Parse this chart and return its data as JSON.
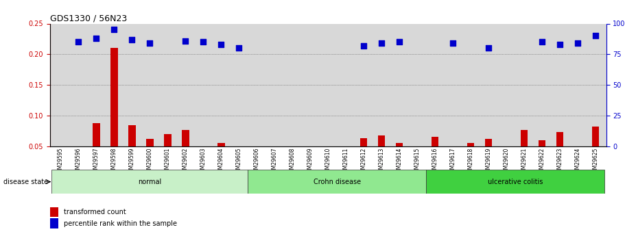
{
  "title": "GDS1330 / 56N23",
  "samples": [
    "GSM29595",
    "GSM29596",
    "GSM29597",
    "GSM29598",
    "GSM29599",
    "GSM29600",
    "GSM29601",
    "GSM29602",
    "GSM29603",
    "GSM29604",
    "GSM29605",
    "GSM29606",
    "GSM29607",
    "GSM29608",
    "GSM29609",
    "GSM29610",
    "GSM29611",
    "GSM29612",
    "GSM29613",
    "GSM29614",
    "GSM29615",
    "GSM29616",
    "GSM29617",
    "GSM29618",
    "GSM29619",
    "GSM29620",
    "GSM29621",
    "GSM29622",
    "GSM29623",
    "GSM29624",
    "GSM29625"
  ],
  "red_values": [
    0.05,
    0.05,
    0.088,
    0.21,
    0.085,
    0.062,
    0.07,
    0.077,
    0.05,
    0.055,
    0.05,
    0.05,
    0.05,
    0.05,
    0.05,
    0.05,
    0.05,
    0.063,
    0.068,
    0.055,
    0.05,
    0.065,
    0.05,
    0.055,
    0.062,
    0.05,
    0.077,
    0.06,
    0.073,
    0.05,
    0.082
  ],
  "blue_values": [
    null,
    85,
    88,
    95,
    87,
    84,
    null,
    86,
    85,
    83,
    80,
    null,
    null,
    null,
    null,
    null,
    null,
    82,
    84,
    85,
    null,
    null,
    84,
    null,
    80,
    null,
    null,
    85,
    83,
    84,
    90
  ],
  "groups": [
    {
      "label": "normal",
      "start": 0,
      "end": 10,
      "color": "#c8f0c8"
    },
    {
      "label": "Crohn disease",
      "start": 11,
      "end": 20,
      "color": "#90e890"
    },
    {
      "label": "ulcerative colitis",
      "start": 21,
      "end": 30,
      "color": "#40d040"
    }
  ],
  "ylim_left": [
    0.05,
    0.25
  ],
  "ylim_right": [
    0,
    100
  ],
  "yticks_left": [
    0.05,
    0.1,
    0.15,
    0.2,
    0.25
  ],
  "yticks_right": [
    0,
    25,
    50,
    75,
    100
  ],
  "left_axis_color": "#cc0000",
  "right_axis_color": "#0000cc",
  "bar_color": "#cc0000",
  "dot_color": "#0000cc",
  "grid_color": "#555555",
  "background_color": "#d8d8d8",
  "bar_width": 0.4,
  "dot_size": 40
}
